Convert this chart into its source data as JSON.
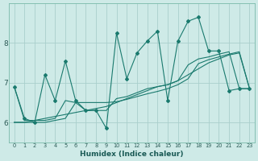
{
  "x": [
    0,
    1,
    2,
    3,
    4,
    5,
    6,
    7,
    8,
    9,
    10,
    11,
    12,
    13,
    14,
    15,
    16,
    17,
    18,
    19,
    20,
    21,
    22,
    23
  ],
  "y_main": [
    6.9,
    6.1,
    6.0,
    7.2,
    6.55,
    7.55,
    6.55,
    6.3,
    6.3,
    5.85,
    8.25,
    7.1,
    7.75,
    8.05,
    8.3,
    6.55,
    8.05,
    8.55,
    8.65,
    7.8,
    7.8,
    6.8,
    6.85,
    6.85
  ],
  "y_line1": [
    6.0,
    6.0,
    6.05,
    6.1,
    6.15,
    6.2,
    6.25,
    6.3,
    6.35,
    6.4,
    6.5,
    6.6,
    6.7,
    6.8,
    6.9,
    6.95,
    7.05,
    7.2,
    7.35,
    7.5,
    7.6,
    7.7,
    7.75,
    6.85
  ],
  "y_line2": [
    6.9,
    6.05,
    6.05,
    6.05,
    6.1,
    6.55,
    6.5,
    6.3,
    6.3,
    6.3,
    6.6,
    6.65,
    6.75,
    6.85,
    6.9,
    6.95,
    7.05,
    7.45,
    7.6,
    7.65,
    7.72,
    7.78,
    6.85,
    6.85
  ],
  "y_line3": [
    6.0,
    6.0,
    6.0,
    6.0,
    6.05,
    6.1,
    6.5,
    6.5,
    6.5,
    6.5,
    6.52,
    6.58,
    6.65,
    6.72,
    6.78,
    6.85,
    6.95,
    7.1,
    7.48,
    7.58,
    7.65,
    7.72,
    7.78,
    6.85
  ],
  "color": "#1a7a6e",
  "bg_color": "#ceeae7",
  "grid_color": "#aacfcc",
  "xlabel": "Humidex (Indice chaleur)",
  "ylim": [
    5.5,
    9.0
  ],
  "xlim": [
    -0.5,
    23.5
  ],
  "yticks": [
    6,
    7,
    8
  ],
  "xtick_labels": [
    "0",
    "1",
    "2",
    "3",
    "4",
    "5",
    "6",
    "7",
    "8",
    "9",
    "10",
    "11",
    "12",
    "13",
    "14",
    "15",
    "16",
    "17",
    "18",
    "19",
    "20",
    "21",
    "22",
    "23"
  ]
}
